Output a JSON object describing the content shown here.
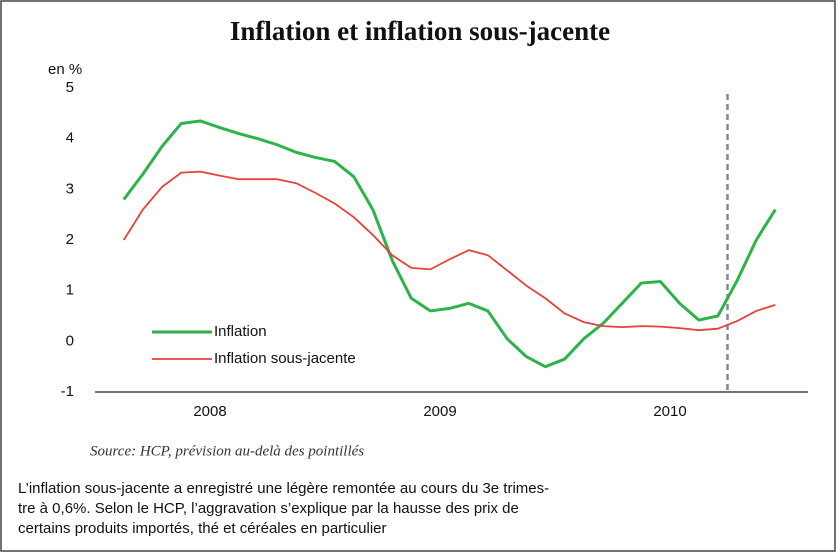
{
  "chart_data": {
    "type": "line",
    "title": "Inflation et inflation sous-jacente",
    "y_label": "en %",
    "x": [
      2008.125,
      2008.208,
      2008.292,
      2008.375,
      2008.458,
      2008.542,
      2008.625,
      2008.708,
      2008.792,
      2008.875,
      2008.958,
      2009.042,
      2009.125,
      2009.208,
      2009.292,
      2009.375,
      2009.458,
      2009.542,
      2009.625,
      2009.708,
      2009.792,
      2009.875,
      2009.958,
      2010.042,
      2010.125,
      2010.208,
      2010.292,
      2010.375,
      2010.458,
      2010.542,
      2010.625,
      2010.708,
      2010.792,
      2010.875,
      2010.958
    ],
    "series": [
      {
        "name": "Inflation",
        "color": "#2eb24a",
        "values": [
          2.8,
          3.3,
          3.85,
          4.3,
          4.35,
          4.22,
          4.1,
          4.0,
          3.88,
          3.73,
          3.63,
          3.55,
          3.25,
          2.6,
          1.6,
          0.85,
          0.6,
          0.65,
          0.75,
          0.6,
          0.05,
          -0.3,
          -0.5,
          -0.35,
          0.05,
          0.35,
          0.75,
          1.15,
          1.18,
          0.75,
          0.42,
          0.5,
          1.2,
          2.0,
          2.6
        ]
      },
      {
        "name": "Inflation sous-jacente",
        "color": "#e8403a",
        "values": [
          2.0,
          2.6,
          3.05,
          3.33,
          3.35,
          3.27,
          3.2,
          3.2,
          3.2,
          3.12,
          2.93,
          2.72,
          2.45,
          2.1,
          1.7,
          1.45,
          1.42,
          1.62,
          1.8,
          1.7,
          1.4,
          1.1,
          0.85,
          0.55,
          0.38,
          0.3,
          0.28,
          0.3,
          0.29,
          0.26,
          0.22,
          0.25,
          0.4,
          0.6,
          0.72
        ]
      }
    ],
    "xlim": [
      2008,
      2011.1
    ],
    "xticks": [
      {
        "value": 2008.5,
        "label": "2008"
      },
      {
        "value": 2009.5,
        "label": "2009"
      },
      {
        "value": 2010.5,
        "label": "2010"
      }
    ],
    "ylim": [
      -1,
      5
    ],
    "yticks": [
      -1,
      0,
      1,
      2,
      3,
      4,
      5
    ],
    "forecast_start": 2010.75,
    "source": "Source: HCP, prévision au-delà des pointillés"
  },
  "caption": [
    "L’inflation sous-jacente a enregistré une légère remontée au cours du 3e trimes-",
    "tre à 0,6%. Selon le HCP, l’aggravation s’explique par la hausse des prix de",
    "certains produits importés, thé et céréales en particulier"
  ]
}
